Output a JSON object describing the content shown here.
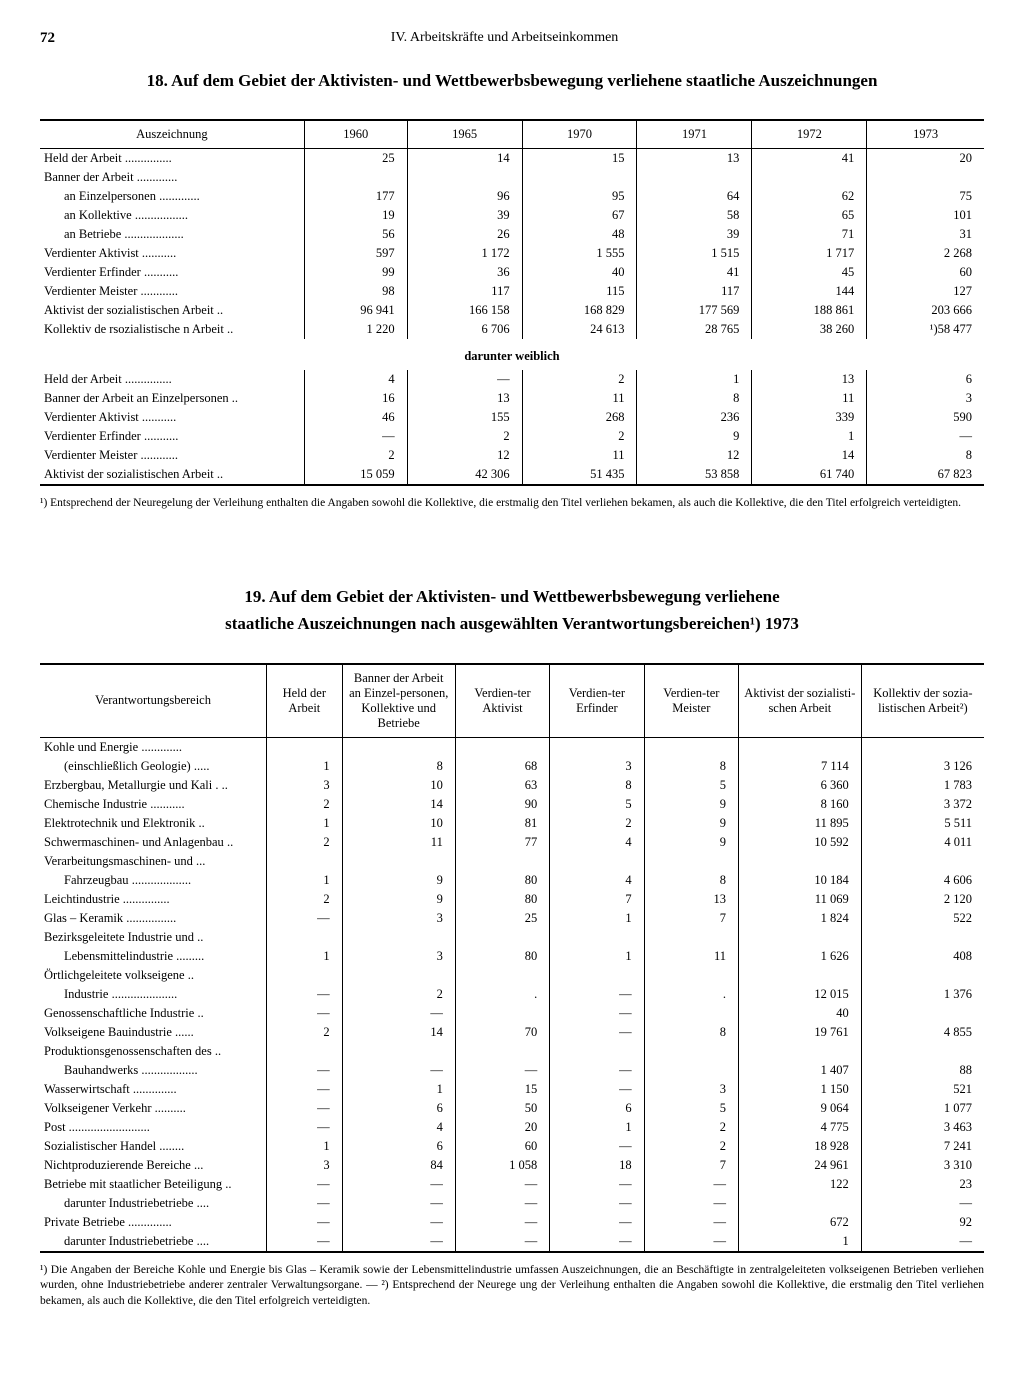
{
  "page_number": "72",
  "section_header": "IV. Arbeitskräfte und Arbeitseinkommen",
  "table18": {
    "title": "18. Auf dem Gebiet der Aktivisten- und Wettbewerbsbewegung verliehene staatliche Auszeichnungen",
    "col_header": "Auszeichnung",
    "years": [
      "1960",
      "1965",
      "1970",
      "1971",
      "1972",
      "1973"
    ],
    "rows": [
      {
        "label": "Held der Arbeit",
        "indent": 0,
        "v": [
          "25",
          "14",
          "15",
          "13",
          "41",
          "20"
        ]
      },
      {
        "label": "Banner der Arbeit",
        "indent": 0,
        "v": [
          "",
          "",
          "",
          "",
          "",
          ""
        ]
      },
      {
        "label": "an Einzelpersonen",
        "indent": 1,
        "v": [
          "177",
          "96",
          "95",
          "64",
          "62",
          "75"
        ]
      },
      {
        "label": "an Kollektive",
        "indent": 1,
        "v": [
          "19",
          "39",
          "67",
          "58",
          "65",
          "101"
        ]
      },
      {
        "label": "an Betriebe",
        "indent": 1,
        "v": [
          "56",
          "26",
          "48",
          "39",
          "71",
          "31"
        ]
      },
      {
        "label": "Verdienter Aktivist",
        "indent": 0,
        "v": [
          "597",
          "1 172",
          "1 555",
          "1 515",
          "1 717",
          "2 268"
        ]
      },
      {
        "label": "Verdienter Erfinder",
        "indent": 0,
        "v": [
          "99",
          "36",
          "40",
          "41",
          "45",
          "60"
        ]
      },
      {
        "label": "Verdienter Meister",
        "indent": 0,
        "v": [
          "98",
          "117",
          "115",
          "117",
          "144",
          "127"
        ]
      },
      {
        "label": "Aktivist der sozialistischen Arbeit",
        "indent": 0,
        "v": [
          "96 941",
          "166 158",
          "168 829",
          "177 569",
          "188 861",
          "203 666"
        ]
      },
      {
        "label": "Kollektiv de rsozialistische n Arbeit",
        "indent": 0,
        "v": [
          "1 220",
          "6 706",
          "24 613",
          "28 765",
          "38 260",
          "¹)58 477"
        ]
      }
    ],
    "sub_header": "darunter weiblich",
    "sub_rows": [
      {
        "label": "Held der Arbeit",
        "v": [
          "4",
          "—",
          "2",
          "1",
          "13",
          "6"
        ]
      },
      {
        "label": "Banner der Arbeit an Einzelpersonen",
        "v": [
          "16",
          "13",
          "11",
          "8",
          "11",
          "3"
        ]
      },
      {
        "label": "Verdienter Aktivist",
        "v": [
          "46",
          "155",
          "268",
          "236",
          "339",
          "590"
        ]
      },
      {
        "label": "Verdienter Erfinder",
        "v": [
          "—",
          "2",
          "2",
          "9",
          "1",
          "—"
        ]
      },
      {
        "label": "Verdienter Meister",
        "v": [
          "2",
          "12",
          "11",
          "12",
          "14",
          "8"
        ]
      },
      {
        "label": "Aktivist der sozialistischen Arbeit",
        "v": [
          "15 059",
          "42 306",
          "51 435",
          "53 858",
          "61 740",
          "67 823"
        ]
      }
    ],
    "footnote": "¹) Entsprechend der Neuregelung der Verleihung enthalten die Angaben sowohl die Kollektive, die erstmalig den Titel verliehen bekamen, als auch die Kollektive, die den Titel erfolgreich verteidigten."
  },
  "table19": {
    "title_l1": "19. Auf dem Gebiet der Aktivisten- und Wettbewerbsbewegung verliehene",
    "title_l2": "staatliche Auszeichnungen nach ausgewählten Verantwortungsbereichen¹) 1973",
    "col_header": "Verantwortungsbereich",
    "cols": [
      "Held der Arbeit",
      "Banner der Arbeit an Einzel-personen, Kollektive und Betriebe",
      "Verdien-ter Aktivist",
      "Verdien-ter Erfinder",
      "Verdien-ter Meister",
      "Aktivist der sozialisti-schen Arbeit",
      "Kollektiv der sozia-listischen Arbeit²)"
    ],
    "rows": [
      {
        "label": "Kohle und Energie",
        "indent": 0,
        "v": [
          "",
          "",
          "",
          "",
          "",
          "",
          ""
        ]
      },
      {
        "label": "(einschließlich Geologie)",
        "indent": 1,
        "v": [
          "1",
          "8",
          "68",
          "3",
          "8",
          "7 114",
          "3 126"
        ]
      },
      {
        "label": "Erzbergbau, Metallurgie und Kali .",
        "indent": 0,
        "v": [
          "3",
          "10",
          "63",
          "8",
          "5",
          "6 360",
          "1 783"
        ]
      },
      {
        "label": "Chemische Industrie",
        "indent": 0,
        "v": [
          "2",
          "14",
          "90",
          "5",
          "9",
          "8 160",
          "3 372"
        ]
      },
      {
        "label": "Elektrotechnik und Elektronik",
        "indent": 0,
        "v": [
          "1",
          "10",
          "81",
          "2",
          "9",
          "11 895",
          "5 511"
        ]
      },
      {
        "label": "Schwermaschinen- und Anlagenbau",
        "indent": 0,
        "v": [
          "2",
          "11",
          "77",
          "4",
          "9",
          "10 592",
          "4 011"
        ]
      },
      {
        "label": "Verarbeitungsmaschinen- und",
        "indent": 0,
        "v": [
          "",
          "",
          "",
          "",
          "",
          "",
          ""
        ]
      },
      {
        "label": "Fahrzeugbau",
        "indent": 1,
        "v": [
          "1",
          "9",
          "80",
          "4",
          "8",
          "10 184",
          "4 606"
        ]
      },
      {
        "label": "Leichtindustrie",
        "indent": 0,
        "v": [
          "2",
          "9",
          "80",
          "7",
          "13",
          "11 069",
          "2 120"
        ]
      },
      {
        "label": "Glas – Keramik",
        "indent": 0,
        "v": [
          "—",
          "3",
          "25",
          "1",
          "7",
          "1 824",
          "522"
        ]
      },
      {
        "label": "Bezirksgeleitete Industrie und",
        "indent": 0,
        "v": [
          "",
          "",
          "",
          "",
          "",
          "",
          ""
        ]
      },
      {
        "label": "Lebensmittelindustrie",
        "indent": 1,
        "v": [
          "1",
          "3",
          "80",
          "1",
          "11",
          "1 626",
          "408"
        ]
      },
      {
        "label": "Örtlichgeleitete volkseigene",
        "indent": 0,
        "v": [
          "",
          "",
          "",
          "",
          "",
          "",
          ""
        ]
      },
      {
        "label": "Industrie",
        "indent": 1,
        "v": [
          "—",
          "2",
          ".",
          "—",
          ".",
          "12 015",
          "1 376"
        ]
      },
      {
        "label": "Genossenschaftliche Industrie",
        "indent": 0,
        "v": [
          "—",
          "—",
          "",
          "—",
          "",
          "40",
          ""
        ]
      },
      {
        "label": "Volkseigene Bauindustrie",
        "indent": 0,
        "v": [
          "2",
          "14",
          "70",
          "—",
          "8",
          "19 761",
          "4 855"
        ]
      },
      {
        "label": "Produktionsgenossenschaften des",
        "indent": 0,
        "v": [
          "",
          "",
          "",
          "",
          "",
          "",
          ""
        ]
      },
      {
        "label": "Bauhandwerks",
        "indent": 1,
        "v": [
          "—",
          "—",
          "—",
          "—",
          "",
          "1 407",
          "88"
        ]
      },
      {
        "label": "Wasserwirtschaft",
        "indent": 0,
        "v": [
          "—",
          "1",
          "15",
          "—",
          "3",
          "1 150",
          "521"
        ]
      },
      {
        "label": "Volkseigener Verkehr",
        "indent": 0,
        "v": [
          "—",
          "6",
          "50",
          "6",
          "5",
          "9 064",
          "1 077"
        ]
      },
      {
        "label": "Post",
        "indent": 0,
        "v": [
          "—",
          "4",
          "20",
          "1",
          "2",
          "4 775",
          "3 463"
        ]
      },
      {
        "label": "Sozialistischer Handel",
        "indent": 0,
        "v": [
          "1",
          "6",
          "60",
          "—",
          "2",
          "18 928",
          "7 241"
        ]
      },
      {
        "label": "Nichtproduzierende Bereiche",
        "indent": 0,
        "v": [
          "3",
          "84",
          "1 058",
          "18",
          "7",
          "24 961",
          "3 310"
        ]
      },
      {
        "label": "Betriebe mit staatlicher Beteiligung",
        "indent": 0,
        "v": [
          "—",
          "—",
          "—",
          "—",
          "—",
          "122",
          "23"
        ]
      },
      {
        "label": "darunter Industriebetriebe",
        "indent": 1,
        "v": [
          "—",
          "—",
          "—",
          "—",
          "—",
          "",
          "—"
        ]
      },
      {
        "label": "Private Betriebe",
        "indent": 0,
        "v": [
          "—",
          "—",
          "—",
          "—",
          "—",
          "672",
          "92"
        ]
      },
      {
        "label": "darunter Industriebetriebe",
        "indent": 1,
        "v": [
          "—",
          "—",
          "—",
          "—",
          "—",
          "1",
          "—"
        ]
      }
    ],
    "footnote": "¹) Die Angaben der Bereiche Kohle und Energie bis Glas – Keramik sowie der Lebensmittelindustrie umfassen Auszeichnungen, die an Beschäftigte in zentralgeleiteten volkseigenen Betrieben verliehen wurden, ohne Industriebetriebe anderer zentraler Verwaltungsorgane. — ²) Entsprechend der Neurege ung der Verleihung enthalten die Angaben sowohl die Kollektive, die erstmalig den Titel verliehen bekamen, als auch die Kollektive, die den Titel erfolgreich verteidigten."
  }
}
